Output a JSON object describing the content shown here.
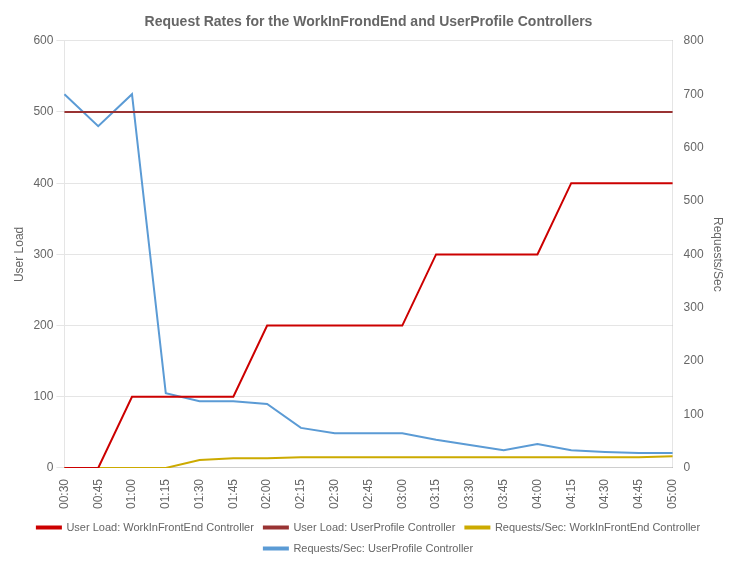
{
  "chart_data": {
    "type": "line",
    "title": "Request Rates for the WorkInFrondEnd and UserProfile Controllers",
    "ylabel": "User Load",
    "y2label": "Requests/Sec",
    "categories": [
      "00:30",
      "00:45",
      "01:00",
      "01:15",
      "01:30",
      "01:45",
      "02:00",
      "02:15",
      "02:30",
      "02:45",
      "03:00",
      "03:15",
      "03:30",
      "03:45",
      "04:00",
      "04:15",
      "04:30",
      "04:45",
      "05:00"
    ],
    "series": [
      {
        "name": "User Load: WorkInFrontEnd Controller",
        "color": "#cc0000",
        "values": [
          0,
          0,
          100,
          100,
          100,
          100,
          200,
          200,
          200,
          200,
          200,
          300,
          300,
          300,
          300,
          400,
          400,
          400,
          400
        ]
      },
      {
        "name": "User Load: UserProfile Controller",
        "color": "#993333",
        "values": [
          500,
          500,
          500,
          500,
          500,
          500,
          500,
          500,
          500,
          500,
          500,
          500,
          500,
          500,
          500,
          500,
          500,
          500,
          500
        ]
      },
      {
        "name": "Requests/Sec: WorkInFrontEnd Controller",
        "color": "#ccaa00",
        "axis": "y2",
        "values": [
          0,
          0,
          0,
          0,
          15,
          18,
          18,
          20,
          20,
          20,
          20,
          20,
          20,
          20,
          20,
          20,
          20,
          20,
          22
        ]
      },
      {
        "name": "Requests/Sec: UserProfile Controller",
        "color": "#5b9bd5",
        "axis": "y2",
        "values": [
          700,
          640,
          700,
          140,
          125,
          125,
          120,
          75,
          65,
          65,
          65,
          53,
          43,
          33,
          45,
          33,
          30,
          28,
          28
        ]
      }
    ],
    "ylim": [
      0,
      600
    ],
    "yticks": [
      0,
      100,
      200,
      300,
      400,
      500,
      600
    ],
    "y2lim": [
      0,
      800
    ],
    "y2ticks": [
      0,
      100,
      200,
      300,
      400,
      500,
      600,
      700,
      800
    ],
    "grid": true,
    "legend": "bottom"
  }
}
